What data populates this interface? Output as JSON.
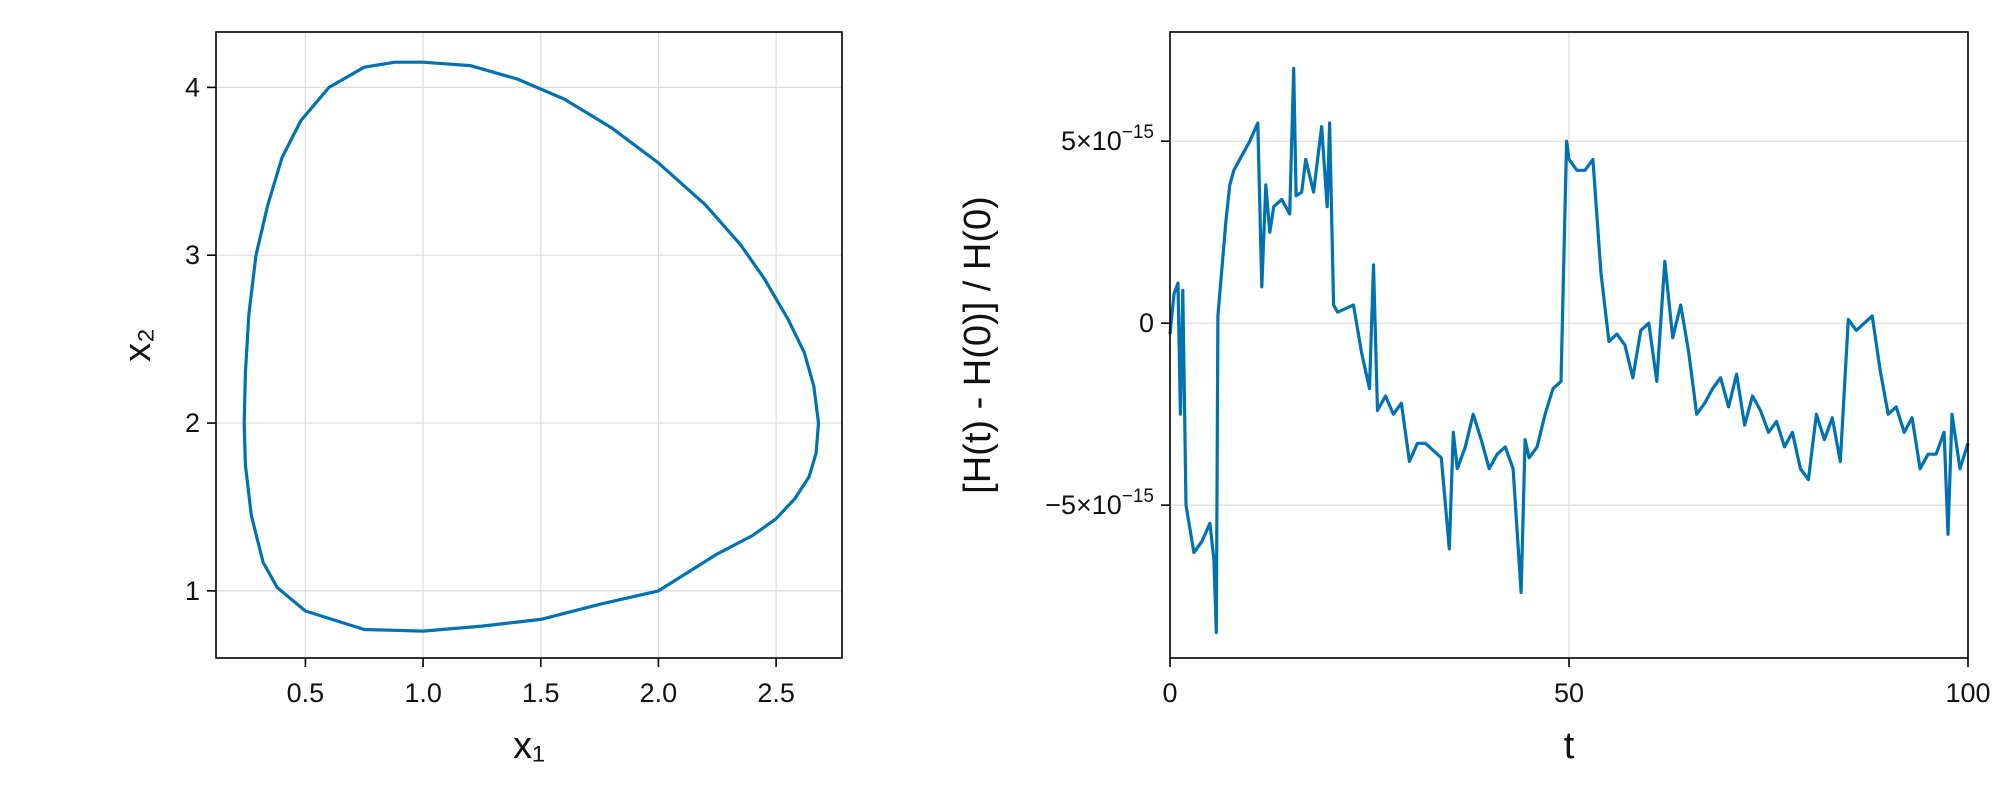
{
  "chart_data": [
    {
      "type": "line",
      "xlabel": "x₁",
      "ylabel": "x₂",
      "xlim": [
        0.12,
        2.78
      ],
      "ylim": [
        0.6,
        4.33
      ],
      "xticks": [
        {
          "value": 0.5,
          "label": "0.5"
        },
        {
          "value": 1.0,
          "label": "1.0"
        },
        {
          "value": 1.5,
          "label": "1.5"
        },
        {
          "value": 2.0,
          "label": "2.0"
        },
        {
          "value": 2.5,
          "label": "2.5"
        }
      ],
      "yticks": [
        {
          "value": 1,
          "label": "1"
        },
        {
          "value": 2,
          "label": "2"
        },
        {
          "value": 3,
          "label": "3"
        },
        {
          "value": 4,
          "label": "4"
        }
      ],
      "grid": true,
      "color": "#0072b2",
      "series": [
        {
          "x": [
            1.0,
            1.2,
            1.4,
            1.6,
            1.8,
            2.0,
            2.2,
            2.35,
            2.45,
            2.55,
            2.62,
            2.66,
            2.68,
            2.67,
            2.64,
            2.58,
            2.5,
            2.4,
            2.25,
            2.0,
            1.75,
            1.5,
            1.25,
            1.0,
            0.75,
            0.5,
            0.38,
            0.32,
            0.27,
            0.245,
            0.24,
            0.245,
            0.26,
            0.29,
            0.34,
            0.4,
            0.48,
            0.6,
            0.75,
            0.88,
            1.0
          ],
          "y": [
            4.15,
            4.13,
            4.05,
            3.93,
            3.76,
            3.55,
            3.3,
            3.06,
            2.86,
            2.62,
            2.42,
            2.22,
            2.0,
            1.82,
            1.68,
            1.55,
            1.43,
            1.33,
            1.22,
            1.0,
            0.92,
            0.83,
            0.79,
            0.76,
            0.77,
            0.88,
            1.02,
            1.17,
            1.45,
            1.75,
            2.0,
            2.3,
            2.65,
            3.0,
            3.3,
            3.58,
            3.8,
            4.0,
            4.12,
            4.15,
            4.15
          ]
        }
      ]
    },
    {
      "type": "line",
      "xlabel": "t",
      "ylabel": "[H(t) - H(0)] / H(0)",
      "xlim": [
        0,
        100
      ],
      "ylim": [
        -9.2e-15,
        8e-15
      ],
      "xticks": [
        {
          "value": 0,
          "label": "0"
        },
        {
          "value": 50,
          "label": "50"
        },
        {
          "value": 100,
          "label": "100"
        }
      ],
      "yticks": [
        {
          "value": 5e-15,
          "label": "5×10",
          "exp": "−15"
        },
        {
          "value": 0,
          "label": "0",
          "exp": ""
        },
        {
          "value": -5e-15,
          "label": "−5×10",
          "exp": "−15"
        }
      ],
      "grid": true,
      "color": "#0072b2",
      "series": [
        {
          "x": [
            0,
            0.5,
            1,
            1.3,
            1.6,
            2,
            3,
            4,
            5,
            5.5,
            5.8,
            6,
            6.5,
            7,
            7.5,
            8,
            9,
            10,
            11,
            11.5,
            12,
            12.5,
            13,
            14,
            15,
            15.5,
            15.8,
            16.5,
            17,
            18,
            19,
            19.7,
            20,
            20.5,
            21,
            22,
            23,
            24,
            25,
            25.5,
            26,
            27,
            28,
            29,
            30,
            31,
            32,
            33,
            34,
            35,
            35.5,
            36,
            37,
            38,
            39,
            40,
            41,
            42,
            43,
            44,
            44.5,
            45,
            46,
            47,
            48,
            49,
            49.7,
            50,
            51,
            52,
            53,
            54,
            55,
            56,
            57,
            58,
            59,
            60,
            61,
            62,
            63,
            64,
            65,
            66,
            67,
            68,
            69,
            70,
            71,
            72,
            73,
            74,
            75,
            76,
            77,
            78,
            79,
            80,
            81,
            82,
            83,
            84,
            85,
            86,
            87,
            88,
            89,
            90,
            91,
            92,
            93,
            94,
            95,
            96,
            97,
            97.5,
            98,
            99,
            100
          ],
          "y": [
            -0.3,
            0.8,
            1.1,
            -2.5,
            0.9,
            -5.0,
            -6.3,
            -6.0,
            -5.5,
            -6.5,
            -8.5,
            0.2,
            1.5,
            2.8,
            3.8,
            4.2,
            4.6,
            5.0,
            5.5,
            1.0,
            3.8,
            2.5,
            3.2,
            3.4,
            3.0,
            7.0,
            3.5,
            3.6,
            4.5,
            3.6,
            5.4,
            3.2,
            5.5,
            0.5,
            0.3,
            0.4,
            0.5,
            -0.8,
            -1.8,
            1.6,
            -2.4,
            -2.0,
            -2.5,
            -2.2,
            -3.8,
            -3.3,
            -3.3,
            -3.5,
            -3.7,
            -6.2,
            -3.0,
            -4.0,
            -3.4,
            -2.5,
            -3.2,
            -4.0,
            -3.6,
            -3.4,
            -4.0,
            -7.4,
            -3.2,
            -3.7,
            -3.4,
            -2.5,
            -1.8,
            -1.6,
            5.0,
            4.5,
            4.2,
            4.2,
            4.5,
            1.4,
            -0.5,
            -0.3,
            -0.6,
            -1.5,
            -0.2,
            0.0,
            -1.6,
            1.7,
            -0.4,
            0.5,
            -0.8,
            -2.5,
            -2.2,
            -1.8,
            -1.5,
            -2.3,
            -1.4,
            -2.8,
            -2.0,
            -2.4,
            -3.0,
            -2.7,
            -3.4,
            -3.0,
            -4.0,
            -4.3,
            -2.5,
            -3.2,
            -2.6,
            -3.8,
            0.1,
            -0.2,
            0.0,
            0.2,
            -1.3,
            -2.5,
            -2.3,
            -3.0,
            -2.6,
            -4.0,
            -3.6,
            -3.6,
            -3.0,
            -5.8,
            -2.5,
            -4.0,
            -3.3
          ]
        }
      ],
      "y_scale_note": "values above are in units of 1e-15"
    }
  ]
}
